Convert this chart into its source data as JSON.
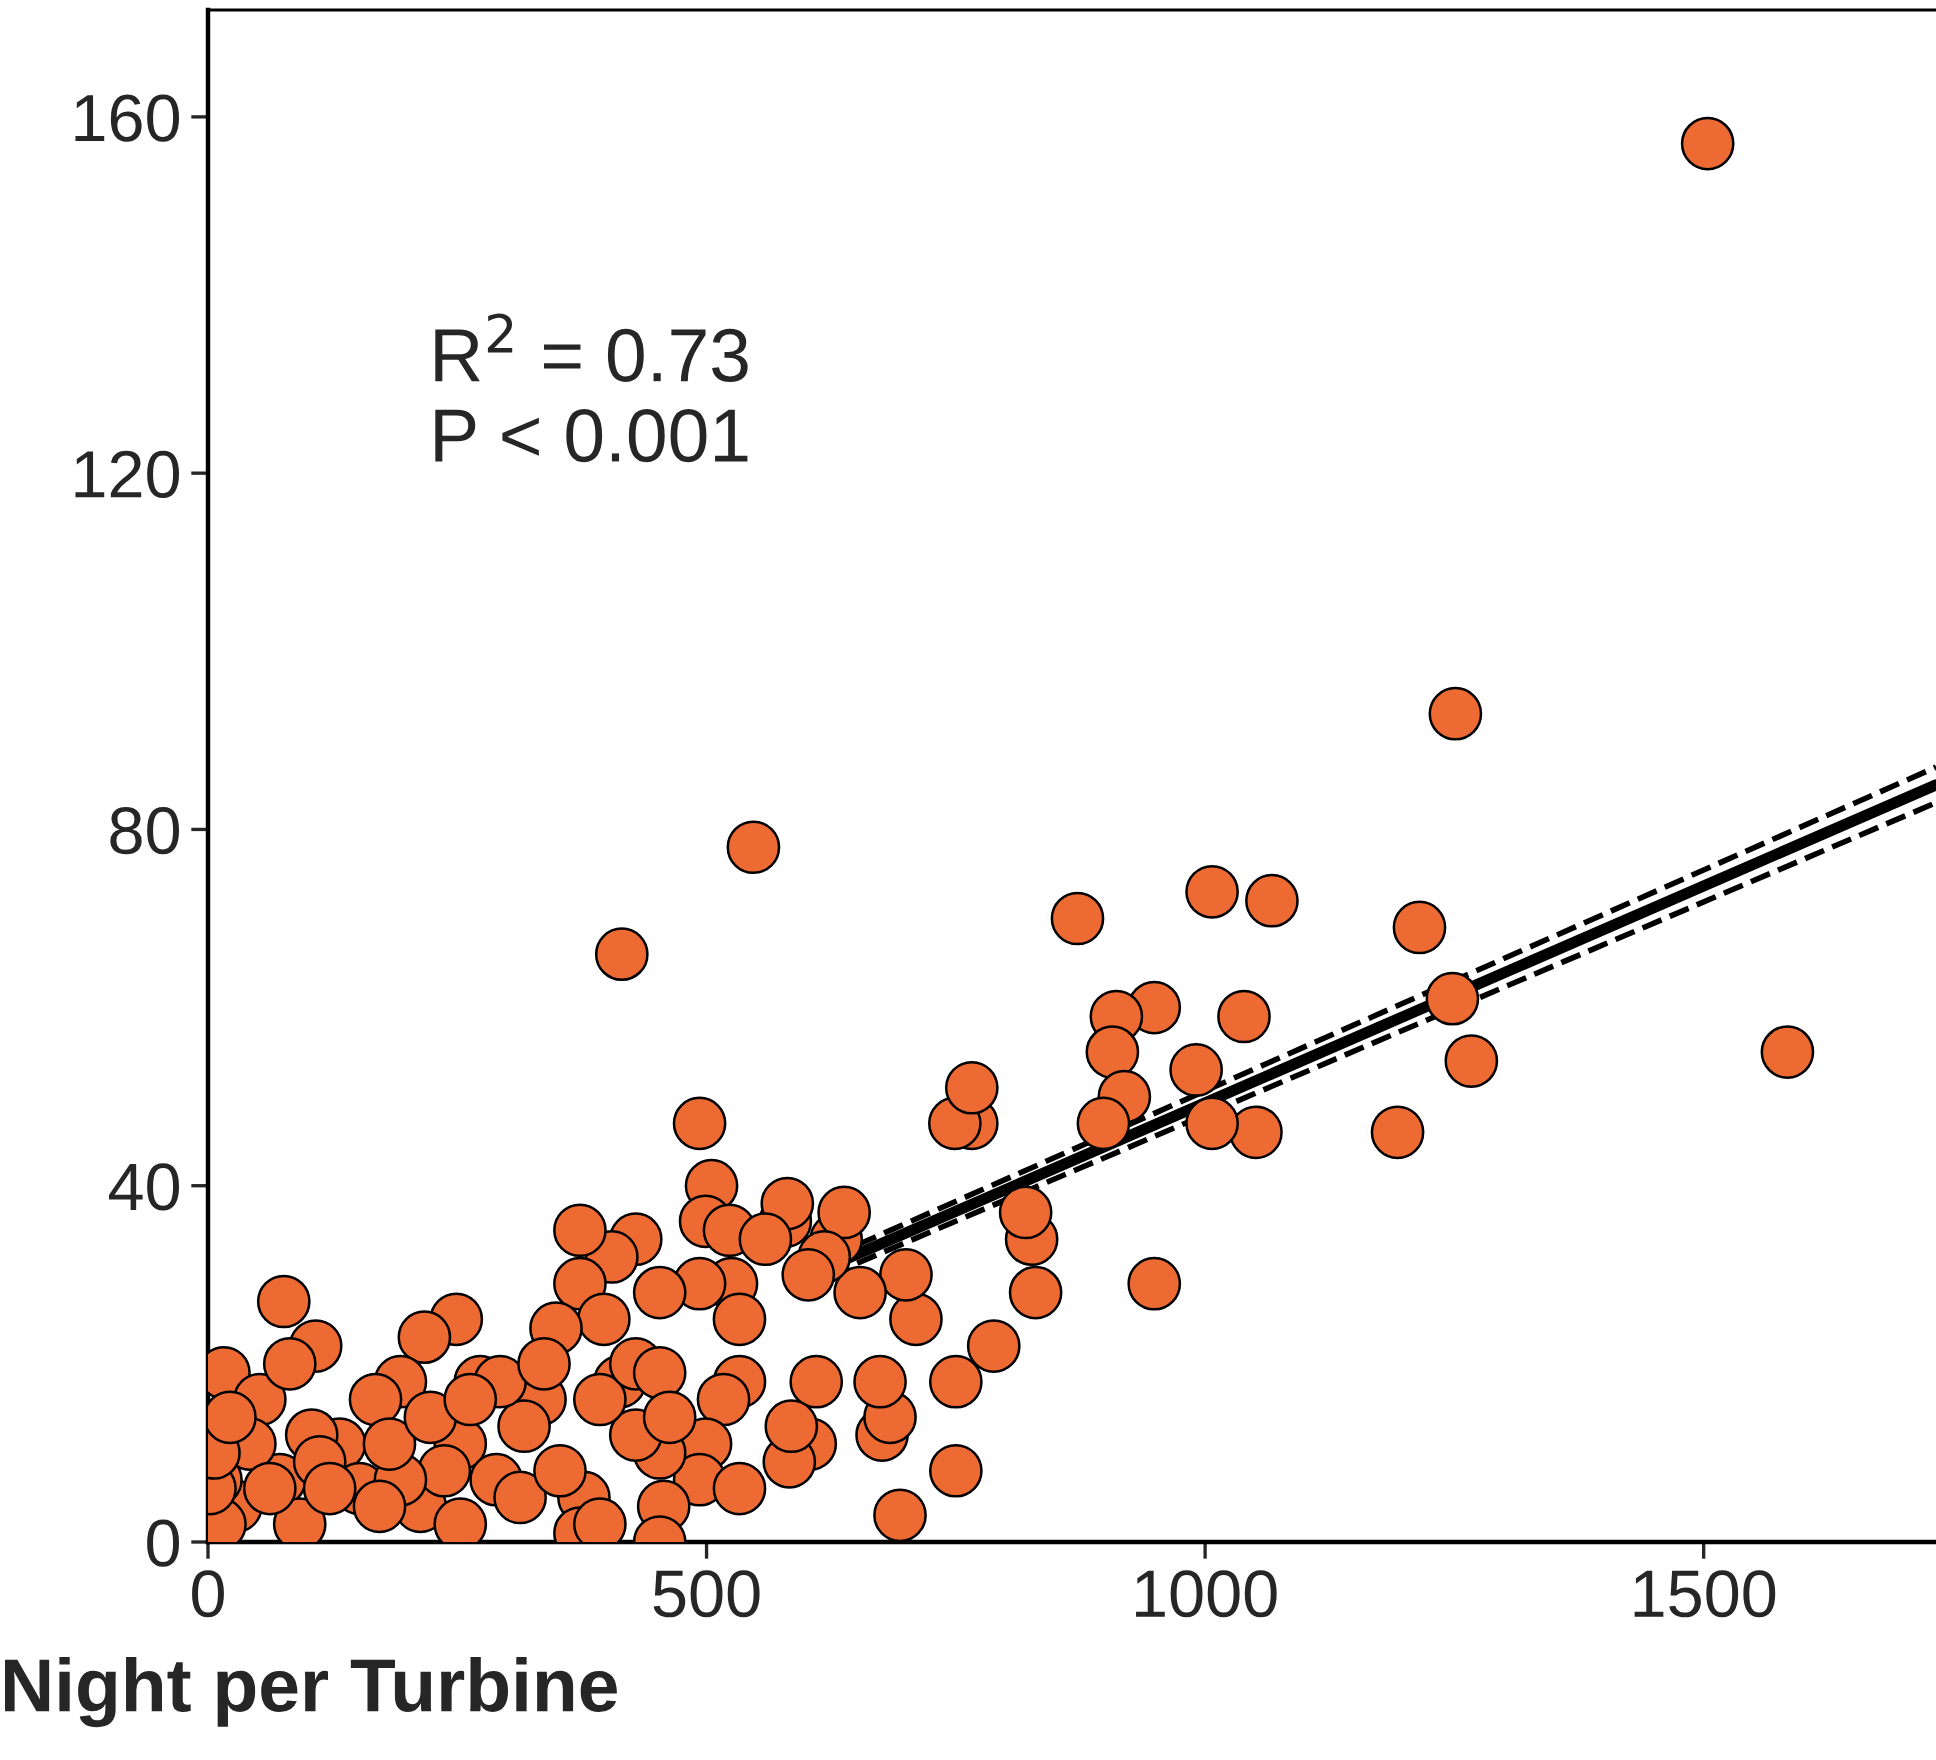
{
  "chart_data": {
    "type": "scatter",
    "xlabel": "Night per Turbine",
    "xlim": [
      0,
      1733
    ],
    "ylim": [
      0,
      172
    ],
    "xticks": [
      0,
      500,
      1000,
      1500
    ],
    "yticks": [
      0,
      40,
      80,
      120,
      160
    ],
    "grid": false,
    "legend": false,
    "annotations": [
      "R$^{2}$ = 0.73",
      "P < 0.001"
    ],
    "series": [
      {
        "marker": "circle",
        "color": "#ee6a33",
        "x": [
          1504,
          1251,
          547,
          415,
          872,
          1007,
          1584,
          1215,
          1248,
          1267,
          1193,
          1067,
          1039,
          1051,
          1007,
          991,
          949,
          911,
          907,
          919,
          898,
          949,
          766,
          749,
          766,
          826,
          820,
          830,
          788,
          750,
          750,
          694,
          676,
          684,
          710,
          700,
          654,
          630,
          638,
          618,
          602,
          579,
          581,
          610,
          604,
          583,
          585,
          493,
          505,
          499,
          523,
          525,
          559,
          533,
          493,
          533,
          517,
          499,
          493,
          457,
          453,
          429,
          453,
          405,
          373,
          373,
          397,
          413,
          429,
          393,
          377,
          349,
          333,
          273,
          253,
          289,
          317,
          249,
          217,
          193,
          168,
          132,
          104,
          76,
          108,
          16,
          52,
          72,
          28,
          8,
          12,
          42,
          92,
          152,
          213,
          253,
          313,
          373,
          453,
          533,
          237,
          193,
          172,
          112,
          82,
          293,
          337,
          429,
          453,
          463,
          674,
          2,
          6,
          22,
          62,
          122,
          182,
          223,
          263,
          353,
          393
        ],
        "values": [
          157,
          93,
          78,
          66,
          70,
          73,
          55,
          69,
          61,
          54,
          46,
          72,
          59,
          46,
          47,
          53,
          60,
          59,
          55,
          50,
          47,
          29,
          47,
          47,
          51,
          34,
          37,
          28,
          22,
          18,
          8,
          3,
          12,
          14,
          25,
          30,
          28,
          34,
          37,
          32,
          30,
          36,
          38,
          18,
          11,
          9,
          13,
          47,
          40,
          36,
          35,
          29,
          34,
          25,
          29,
          18,
          16,
          11,
          7,
          4,
          10,
          34,
          28,
          32,
          35,
          29,
          25,
          18,
          12,
          16,
          5,
          24,
          16,
          18,
          11,
          7,
          13,
          25,
          23,
          18,
          16,
          11,
          12,
          27,
          22,
          19,
          16,
          7,
          4,
          7,
          2,
          11,
          2,
          6,
          4,
          2,
          5,
          1,
          0,
          6,
          8,
          7,
          4,
          9,
          20,
          18,
          20,
          20,
          19,
          14,
          18,
          6,
          10,
          14,
          6,
          6,
          11,
          14,
          16,
          8,
          2
        ]
      },
      {
        "type": "line",
        "line_style": "solid",
        "color": "#000000",
        "x": [
          624,
          1733
        ],
        "values": [
          31,
          85
        ]
      },
      {
        "type": "line",
        "line_style": "dashed",
        "color": "#000000",
        "x": [
          624,
          1733
        ],
        "values": [
          30,
          83
        ]
      },
      {
        "type": "line",
        "line_style": "dashed",
        "color": "#000000",
        "x": [
          624,
          1733
        ],
        "values": [
          32,
          87
        ]
      }
    ]
  }
}
